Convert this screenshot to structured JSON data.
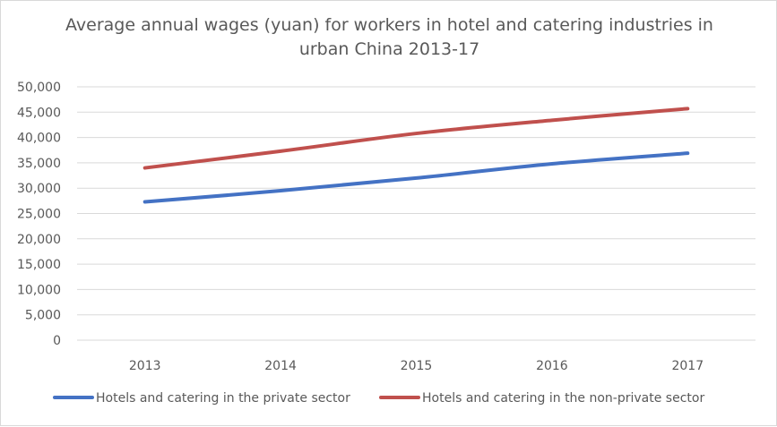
{
  "chart_data": {
    "type": "line",
    "title_line1": "Average annual wages (yuan) for workers in hotel and catering industries in",
    "title_line2": "urban China 2013-17",
    "xlabel": "",
    "ylabel": "",
    "categories": [
      "2013",
      "2014",
      "2015",
      "2016",
      "2017"
    ],
    "ylim": [
      0,
      50000
    ],
    "y_ticks": [
      0,
      5000,
      10000,
      15000,
      20000,
      25000,
      30000,
      35000,
      40000,
      45000,
      50000
    ],
    "y_tick_labels": [
      "0",
      "5,000",
      "10,000",
      "15,000",
      "20,000",
      "25,000",
      "30,000",
      "35,000",
      "40,000",
      "45,000",
      "50,000"
    ],
    "grid": true,
    "legend_position": "bottom",
    "series": [
      {
        "name": "Hotels and catering in the private sector",
        "color": "#4472c4",
        "values": [
          27300,
          29500,
          32000,
          34800,
          36900
        ]
      },
      {
        "name": "Hotels and catering in the non-private sector",
        "color": "#c0504d",
        "values": [
          34000,
          37300,
          40800,
          43400,
          45700
        ]
      }
    ]
  }
}
